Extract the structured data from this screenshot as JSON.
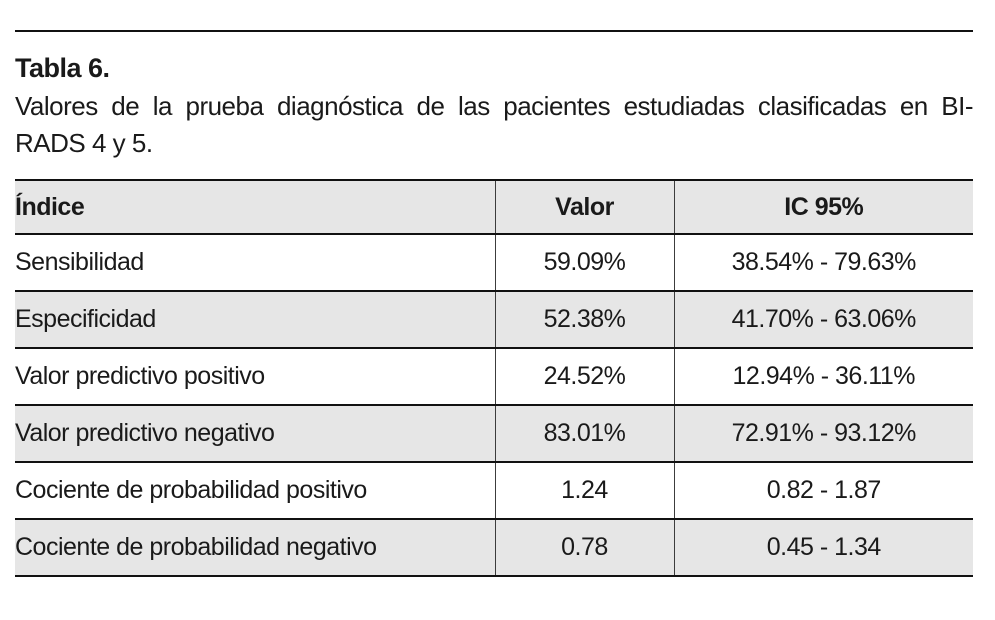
{
  "figure": {
    "title": "Tabla 6.",
    "caption_line1": "Valores de la prueba diagnóstica de las pacientes estudiadas clasificadas en BI-",
    "caption_line2": "RADS 4 y 5.",
    "caption_full": "Valores de la prueba diagnóstica de las pacientes estudiadas clasificadas en BI-RADS 4 y 5."
  },
  "colors": {
    "row_shade": "#e6e6e6",
    "rule": "#111111",
    "text": "#1a1a1a"
  },
  "chart_data": {
    "type": "table",
    "title": "Tabla 6. Valores de la prueba diagnóstica de las pacientes estudiadas clasificadas en BI-RADS 4 y 5.",
    "columns": [
      "Índice",
      "Valor",
      "IC 95%"
    ],
    "rows": [
      {
        "indice": "Sensibilidad",
        "valor": "59.09%",
        "ic95": "38.54% - 79.63%"
      },
      {
        "indice": "Especificidad",
        "valor": "52.38%",
        "ic95": "41.70% - 63.06%"
      },
      {
        "indice": "Valor predictivo positivo",
        "valor": "24.52%",
        "ic95": "12.94% - 36.11%"
      },
      {
        "indice": "Valor predictivo negativo",
        "valor": "83.01%",
        "ic95": "72.91% - 93.12%"
      },
      {
        "indice": "Cociente de probabilidad positivo",
        "valor": "1.24",
        "ic95": "0.82 - 1.87"
      },
      {
        "indice": "Cociente de probabilidad negativo",
        "valor": "0.78",
        "ic95": "0.45 - 1.34"
      }
    ]
  }
}
